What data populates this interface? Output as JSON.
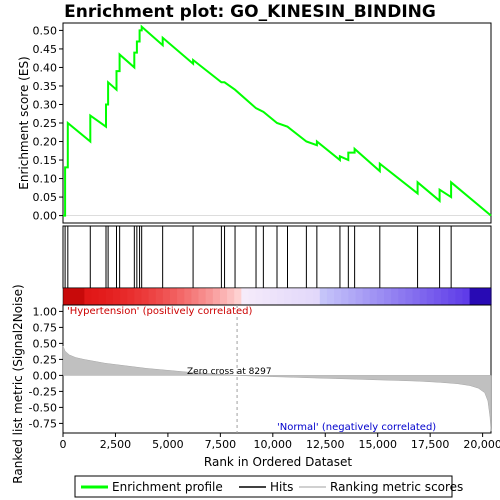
{
  "chart_data": {
    "type": "line",
    "title": "Enrichment plot: GO_KINESIN_BINDING",
    "es_panel": {
      "ylabel": "Enrichment score (ES)",
      "ylim": [
        -0.02,
        0.52
      ],
      "yticks": [
        "0.00",
        "0.05",
        "0.10",
        "0.15",
        "0.20",
        "0.25",
        "0.30",
        "0.35",
        "0.40",
        "0.45",
        "0.50"
      ],
      "ytick_values": [
        0,
        0.05,
        0.1,
        0.15,
        0.2,
        0.25,
        0.3,
        0.35,
        0.4,
        0.45,
        0.5
      ],
      "series": [
        {
          "name": "Enrichment profile",
          "color": "#00ff00",
          "x": [
            0,
            100,
            100,
            230,
            230,
            1300,
            1300,
            2050,
            2050,
            2150,
            2150,
            2550,
            2550,
            2700,
            2700,
            3400,
            3400,
            3520,
            3520,
            3650,
            3650,
            3750,
            3750,
            4750,
            4750,
            6200,
            6200,
            7550,
            7550,
            7700,
            7700,
            8200,
            8200,
            9200,
            9200,
            9550,
            9550,
            10200,
            10200,
            10700,
            10700,
            11600,
            11600,
            12100,
            12100,
            13200,
            13200,
            13600,
            13600,
            13900,
            13900,
            15100,
            15100,
            16900,
            16900,
            17950,
            17950,
            18500,
            18500,
            20400
          ],
          "y": [
            0,
            0,
            0.13,
            0.13,
            0.25,
            0.2,
            0.27,
            0.24,
            0.3,
            0.3,
            0.36,
            0.34,
            0.39,
            0.39,
            0.435,
            0.4,
            0.44,
            0.44,
            0.47,
            0.47,
            0.5,
            0.5,
            0.51,
            0.46,
            0.48,
            0.41,
            0.42,
            0.36,
            0.36,
            0.36,
            0.36,
            0.34,
            0.34,
            0.29,
            0.29,
            0.28,
            0.28,
            0.25,
            0.25,
            0.24,
            0.24,
            0.2,
            0.2,
            0.19,
            0.2,
            0.15,
            0.16,
            0.15,
            0.17,
            0.17,
            0.18,
            0.12,
            0.14,
            0.06,
            0.09,
            0.04,
            0.07,
            0.05,
            0.09,
            0
          ]
        }
      ]
    },
    "hits_panel": {
      "positions": [
        100,
        230,
        1300,
        2050,
        2150,
        2550,
        2700,
        3400,
        3520,
        3650,
        3750,
        4750,
        6200,
        7550,
        7700,
        8200,
        9200,
        9550,
        10200,
        10700,
        11600,
        12100,
        13200,
        13600,
        13900,
        15100,
        16900,
        17950,
        18500
      ]
    },
    "ranked_panel": {
      "ylabel": "Ranked list metric (Signal2Noise)",
      "xlabel": "Rank in Ordered Dataset",
      "ylim": [
        -0.9,
        1.1
      ],
      "yticks": [
        "1.00",
        "0.75",
        "0.50",
        "0.25",
        "0.00",
        "-0.25",
        "-0.50",
        "-0.75"
      ],
      "ytick_values": [
        1,
        0.75,
        0.5,
        0.25,
        0,
        -0.25,
        -0.5,
        -0.75
      ],
      "x": [
        0,
        100,
        300,
        600,
        1000,
        1500,
        2000,
        3000,
        4000,
        5000,
        6000,
        7000,
        8297,
        9000,
        10000,
        11000,
        12000,
        13000,
        14000,
        15000,
        16000,
        17000,
        18000,
        18800,
        19400,
        19800,
        20100,
        20250,
        20350,
        20400
      ],
      "y": [
        0.46,
        0.38,
        0.32,
        0.28,
        0.25,
        0.22,
        0.19,
        0.15,
        0.11,
        0.08,
        0.05,
        0.03,
        0,
        -0.01,
        -0.02,
        -0.03,
        -0.04,
        -0.05,
        -0.06,
        -0.07,
        -0.08,
        -0.09,
        -0.11,
        -0.13,
        -0.16,
        -0.2,
        -0.27,
        -0.4,
        -0.65,
        -0.87
      ],
      "zero_cross_label": "Zero cross at 8297",
      "zero_cross": 8297,
      "positive_label": "'Hypertension' (positively correlated)",
      "negative_label": "'Normal' (negatively correlated)"
    },
    "xlim": [
      0,
      20400
    ],
    "xticks": [
      "0",
      "2,500",
      "5,000",
      "7,500",
      "10,000",
      "12,500",
      "15,000",
      "17,500",
      "20,000"
    ],
    "xtick_values": [
      0,
      2500,
      5000,
      7500,
      10000,
      12500,
      15000,
      17500,
      20000
    ],
    "legend": [
      {
        "label": "Enrichment profile",
        "color": "#00ff00"
      },
      {
        "label": "Hits",
        "color": "#000000"
      },
      {
        "label": "Ranking metric scores",
        "color": "#c0c0c0"
      }
    ]
  }
}
